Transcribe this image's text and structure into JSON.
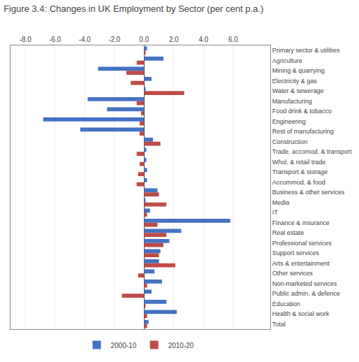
{
  "chart_data": {
    "type": "bar",
    "orientation": "horizontal",
    "title": "Figure 3.4: Changes in UK Employment by Sector (per cent p.a.)",
    "categories": [
      "Primary sector & utilities",
      "Agriculture",
      "Mining & quarrying",
      "Electricity & gas",
      "Water & sewerage",
      "Manufacturing",
      "Food drink & tobacco",
      "Engineering",
      "Rest of manufacturing",
      "Construction",
      "Trade, accomod. & transport",
      "Whol. & retail trade",
      "Transport & storage",
      "Accommod. & food",
      "Business & other services",
      "Media",
      "IT",
      "Finance & insurance",
      "Real estate",
      "Professional services",
      "Support services",
      "Arts & entertainment",
      "Other services",
      "Non-marketed services",
      "Public admin. & defence",
      "Education",
      "Health & social work",
      "Total"
    ],
    "series": [
      {
        "name": "2000-10",
        "color": "#4472C4",
        "values": [
          0.2,
          1.3,
          -3.1,
          0.5,
          0.1,
          -3.8,
          -2.5,
          -6.8,
          -4.3,
          0.6,
          0.15,
          0.15,
          0.2,
          0.2,
          0.9,
          0.1,
          0.4,
          5.8,
          2.5,
          1.7,
          1.1,
          1.0,
          0.7,
          1.2,
          0.5,
          1.5,
          2.2,
          0.3
        ]
      },
      {
        "name": "2010-20",
        "color": "#BE4B48",
        "values": [
          0.1,
          -0.5,
          -1.2,
          -0.9,
          2.7,
          -0.5,
          -0.2,
          -0.3,
          -0.3,
          1.1,
          -0.5,
          -0.3,
          -0.4,
          -0.5,
          1.0,
          1.5,
          0.2,
          0.9,
          1.5,
          1.3,
          1.0,
          2.1,
          -0.4,
          0.2,
          -1.5,
          0.1,
          0.2,
          0.2
        ]
      }
    ],
    "xlim": [
      -9.0,
      8.5
    ],
    "xticks": [
      {
        "value": -8.0,
        "label": "-8.0"
      },
      {
        "value": -6.0,
        "label": "-6.0"
      },
      {
        "value": -4.0,
        "label": "-4.0"
      },
      {
        "value": -2.0,
        "label": "-2.0"
      },
      {
        "value": 0.0,
        "label": "0.0"
      },
      {
        "value": 2.0,
        "label": "2.0"
      },
      {
        "value": 4.0,
        "label": "4.0"
      },
      {
        "value": 6.0,
        "label": "6.0"
      }
    ],
    "grid": true,
    "legend": "bottom"
  }
}
